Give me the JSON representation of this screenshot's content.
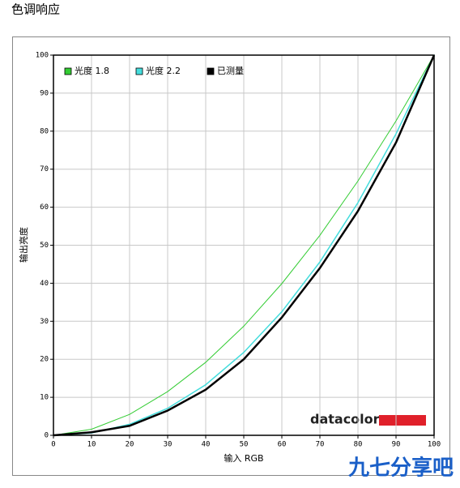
{
  "page_title": "色调响应",
  "chart_data": {
    "type": "line",
    "x": [
      0,
      10,
      20,
      30,
      40,
      50,
      60,
      70,
      80,
      90,
      100
    ],
    "series": [
      {
        "name": "光度 1.8",
        "color": "#33cc33",
        "values": [
          0,
          1.6,
          5.5,
          11.5,
          19.2,
          28.7,
          39.9,
          52.6,
          66.9,
          82.7,
          100
        ]
      },
      {
        "name": "光度 2.2",
        "color": "#44dddd",
        "values": [
          0,
          0.6,
          2.9,
          7.1,
          13.3,
          21.8,
          32.5,
          45.6,
          61.2,
          79.3,
          100
        ]
      },
      {
        "name": "已测量",
        "color": "#000000",
        "values": [
          0,
          0.8,
          2.5,
          6.5,
          12,
          20,
          31,
          44,
          59,
          77,
          100
        ]
      }
    ],
    "xlim": [
      0,
      100
    ],
    "ylim": [
      0,
      100
    ],
    "xticks": [
      0,
      10,
      20,
      30,
      40,
      50,
      60,
      70,
      80,
      90,
      100
    ],
    "yticks": [
      0,
      10,
      20,
      30,
      40,
      50,
      60,
      70,
      80,
      90,
      100
    ],
    "xlabel": "输入 RGB",
    "ylabel": "输出亮度",
    "grid": true,
    "legend": "upper left",
    "brand": "datacolor"
  },
  "watermark": "九七分享吧"
}
